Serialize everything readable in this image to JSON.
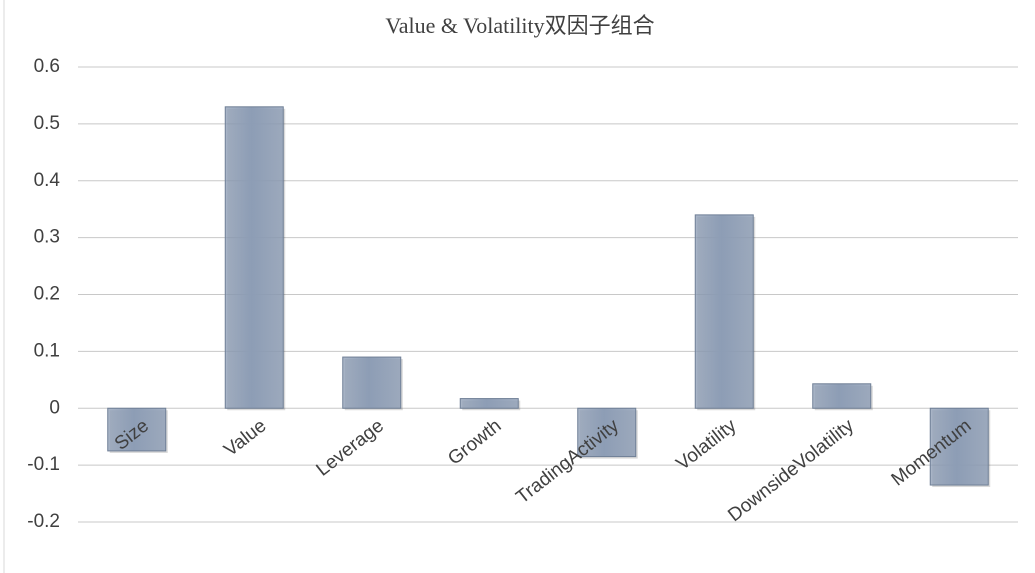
{
  "chart_data": {
    "type": "bar",
    "title": "Value & Volatility双因子组合",
    "categories": [
      "Size",
      "Value",
      "Leverage",
      "Growth",
      "TradingActivity",
      "Volatility",
      "DownsideVolatility",
      "Momentum"
    ],
    "values": [
      -0.075,
      0.53,
      0.09,
      0.017,
      -0.085,
      0.34,
      0.043,
      -0.135
    ],
    "color": "#8d9db5",
    "ylim": [
      -0.2,
      0.6
    ],
    "yticks": [
      -0.2,
      -0.1,
      0,
      0.1,
      0.2,
      0.3,
      0.4,
      0.5,
      0.6
    ],
    "grid": true
  }
}
